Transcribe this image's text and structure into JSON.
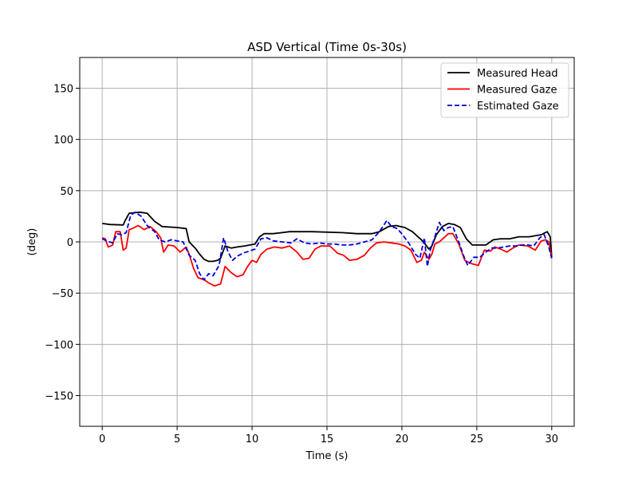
{
  "chart_data": {
    "type": "line",
    "title": "ASD Vertical (Time 0s-30s)",
    "xlabel": "Time (s)",
    "ylabel": "(deg)",
    "xlim": [
      -1.5,
      31.5
    ],
    "ylim": [
      -180,
      180
    ],
    "xticks": [
      0,
      5,
      10,
      15,
      20,
      25,
      30
    ],
    "yticks": [
      -150,
      -100,
      -50,
      0,
      50,
      100,
      150
    ],
    "grid": true,
    "legend_position": "top-right",
    "series": [
      {
        "name": "Measured Head",
        "color": "#000000",
        "style": "solid",
        "points": [
          [
            0,
            18
          ],
          [
            0.5,
            17
          ],
          [
            1.4,
            16.5
          ],
          [
            1.5,
            20
          ],
          [
            1.8,
            28
          ],
          [
            2.5,
            29
          ],
          [
            3.0,
            28
          ],
          [
            3.5,
            20
          ],
          [
            4.0,
            15
          ],
          [
            5.0,
            14
          ],
          [
            5.6,
            13
          ],
          [
            5.8,
            0
          ],
          [
            6.2,
            -6
          ],
          [
            6.5,
            -12
          ],
          [
            6.8,
            -17
          ],
          [
            7.1,
            -19
          ],
          [
            7.4,
            -19
          ],
          [
            7.7,
            -18
          ],
          [
            7.9,
            -16
          ],
          [
            8.2,
            -4
          ],
          [
            8.6,
            -6
          ],
          [
            9,
            -5
          ],
          [
            9.5,
            -4
          ],
          [
            10.2,
            -2
          ],
          [
            10.5,
            5
          ],
          [
            10.8,
            8
          ],
          [
            11.4,
            8
          ],
          [
            12,
            9
          ],
          [
            12.5,
            10
          ],
          [
            14,
            10
          ],
          [
            16,
            9
          ],
          [
            17,
            8
          ],
          [
            18,
            8
          ],
          [
            18.5,
            10
          ],
          [
            19.1,
            15
          ],
          [
            19.6,
            16
          ],
          [
            20.2,
            14
          ],
          [
            20.7,
            10
          ],
          [
            21,
            6
          ],
          [
            21.3,
            2
          ],
          [
            21.6,
            -3
          ],
          [
            21.8,
            -7
          ],
          [
            22,
            -4
          ],
          [
            22.3,
            7
          ],
          [
            22.7,
            15
          ],
          [
            23.1,
            18
          ],
          [
            23.5,
            17
          ],
          [
            23.9,
            14
          ],
          [
            24.3,
            3
          ],
          [
            24.7,
            -3
          ],
          [
            25.1,
            -3
          ],
          [
            25.6,
            -3
          ],
          [
            26.1,
            2
          ],
          [
            26.6,
            3
          ],
          [
            27.2,
            3
          ],
          [
            27.8,
            5
          ],
          [
            28.5,
            5
          ],
          [
            29.3,
            7
          ],
          [
            29.7,
            10
          ],
          [
            29.9,
            5
          ],
          [
            30.0,
            -15
          ]
        ]
      },
      {
        "name": "Measured Gaze",
        "color": "#ff0000",
        "style": "solid",
        "points": [
          [
            0,
            4
          ],
          [
            0.2,
            3
          ],
          [
            0.4,
            -5
          ],
          [
            0.7,
            -3
          ],
          [
            0.9,
            10
          ],
          [
            1.2,
            10
          ],
          [
            1.4,
            -8
          ],
          [
            1.6,
            -6
          ],
          [
            1.8,
            12
          ],
          [
            2.0,
            13
          ],
          [
            2.4,
            16
          ],
          [
            2.8,
            12
          ],
          [
            3.2,
            15
          ],
          [
            3.6,
            10
          ],
          [
            3.9,
            4
          ],
          [
            4.1,
            -10
          ],
          [
            4.4,
            -3
          ],
          [
            4.8,
            -4
          ],
          [
            5.2,
            -10
          ],
          [
            5.6,
            -5
          ],
          [
            5.8,
            -12
          ],
          [
            6.1,
            -26
          ],
          [
            6.4,
            -35
          ],
          [
            6.8,
            -37
          ],
          [
            7.1,
            -40
          ],
          [
            7.5,
            -43
          ],
          [
            7.9,
            -41
          ],
          [
            8.2,
            -24
          ],
          [
            8.6,
            -30
          ],
          [
            9.0,
            -34
          ],
          [
            9.4,
            -32
          ],
          [
            9.7,
            -24
          ],
          [
            10.0,
            -18
          ],
          [
            10.3,
            -20
          ],
          [
            10.6,
            -12
          ],
          [
            11,
            -7
          ],
          [
            11.5,
            -5
          ],
          [
            12,
            -6
          ],
          [
            12.5,
            -4
          ],
          [
            13,
            -10
          ],
          [
            13.4,
            -17
          ],
          [
            13.8,
            -16
          ],
          [
            14.2,
            -7
          ],
          [
            14.6,
            -4
          ],
          [
            15.2,
            -4
          ],
          [
            15.7,
            -11
          ],
          [
            16.1,
            -13
          ],
          [
            16.5,
            -18
          ],
          [
            17.0,
            -17
          ],
          [
            17.5,
            -13
          ],
          [
            17.9,
            -6
          ],
          [
            18.3,
            -1
          ],
          [
            18.8,
            0
          ],
          [
            19.3,
            -1
          ],
          [
            19.8,
            -2
          ],
          [
            20.2,
            -4
          ],
          [
            20.6,
            -8
          ],
          [
            21.0,
            -20
          ],
          [
            21.3,
            -18
          ],
          [
            21.5,
            -10
          ],
          [
            21.8,
            -17
          ],
          [
            22.0,
            -12
          ],
          [
            22.2,
            -2
          ],
          [
            22.5,
            0
          ],
          [
            22.8,
            4
          ],
          [
            23.1,
            8
          ],
          [
            23.4,
            8
          ],
          [
            23.8,
            -2
          ],
          [
            24.2,
            -18
          ],
          [
            24.6,
            -21
          ],
          [
            25.1,
            -23
          ],
          [
            25.5,
            -8
          ],
          [
            25.9,
            -9
          ],
          [
            26.2,
            -5
          ],
          [
            26.6,
            -7
          ],
          [
            27.0,
            -10
          ],
          [
            27.4,
            -6
          ],
          [
            27.8,
            -3
          ],
          [
            28.4,
            -4
          ],
          [
            28.9,
            -8
          ],
          [
            29.3,
            1
          ],
          [
            29.6,
            2
          ],
          [
            29.8,
            0
          ],
          [
            30.0,
            -16
          ]
        ]
      },
      {
        "name": "Estimated Gaze",
        "color": "#0000dd",
        "style": "dashed",
        "points": [
          [
            0,
            3
          ],
          [
            0.3,
            1
          ],
          [
            0.7,
            -1
          ],
          [
            1.0,
            8
          ],
          [
            1.3,
            7
          ],
          [
            1.6,
            9
          ],
          [
            1.9,
            26
          ],
          [
            2.2,
            29
          ],
          [
            2.6,
            25
          ],
          [
            3.0,
            16
          ],
          [
            3.5,
            10
          ],
          [
            3.8,
            2
          ],
          [
            4.2,
            0
          ],
          [
            4.6,
            2
          ],
          [
            5.0,
            1
          ],
          [
            5.4,
            0
          ],
          [
            5.8,
            -13
          ],
          [
            6.2,
            -18
          ],
          [
            6.5,
            -31
          ],
          [
            6.8,
            -37
          ],
          [
            7.1,
            -31
          ],
          [
            7.4,
            -33
          ],
          [
            7.8,
            -23
          ],
          [
            8.1,
            4
          ],
          [
            8.4,
            -10
          ],
          [
            8.7,
            -18
          ],
          [
            9.0,
            -14
          ],
          [
            9.4,
            -11
          ],
          [
            9.8,
            -9
          ],
          [
            10.2,
            -7
          ],
          [
            10.6,
            3
          ],
          [
            11.0,
            4
          ],
          [
            11.4,
            1
          ],
          [
            12.0,
            0
          ],
          [
            12.6,
            -1
          ],
          [
            13.0,
            3
          ],
          [
            13.5,
            -1
          ],
          [
            14.0,
            -2
          ],
          [
            14.5,
            -1
          ],
          [
            15.0,
            -2
          ],
          [
            15.5,
            -2
          ],
          [
            16.0,
            -3
          ],
          [
            16.5,
            -3
          ],
          [
            17.0,
            -2
          ],
          [
            17.5,
            0
          ],
          [
            18.0,
            2
          ],
          [
            18.5,
            10
          ],
          [
            19.0,
            21
          ],
          [
            19.3,
            15
          ],
          [
            19.7,
            13
          ],
          [
            20.1,
            6
          ],
          [
            20.5,
            -2
          ],
          [
            20.9,
            -12
          ],
          [
            21.2,
            -16
          ],
          [
            21.5,
            4
          ],
          [
            21.7,
            -24
          ],
          [
            21.9,
            -8
          ],
          [
            22.2,
            5
          ],
          [
            22.5,
            19
          ],
          [
            22.8,
            11
          ],
          [
            23.1,
            14
          ],
          [
            23.4,
            15
          ],
          [
            23.8,
            0
          ],
          [
            24.1,
            -13
          ],
          [
            24.4,
            -23
          ],
          [
            24.8,
            -15
          ],
          [
            25.2,
            -15
          ],
          [
            25.6,
            -10
          ],
          [
            26.0,
            -6
          ],
          [
            26.4,
            -6
          ],
          [
            26.8,
            -5
          ],
          [
            27.2,
            -4
          ],
          [
            27.6,
            -4
          ],
          [
            28.0,
            -3
          ],
          [
            28.4,
            -3
          ],
          [
            28.8,
            -4
          ],
          [
            29.2,
            4
          ],
          [
            29.5,
            7
          ],
          [
            29.8,
            -5
          ],
          [
            30.0,
            -16
          ]
        ]
      }
    ]
  }
}
